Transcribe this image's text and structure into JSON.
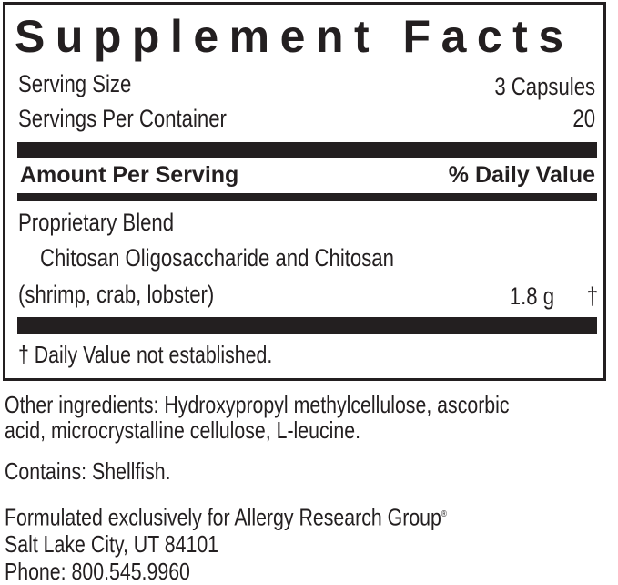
{
  "title": "Supplement Facts",
  "serving_size": {
    "label": "Serving Size",
    "value": "3 Capsules"
  },
  "servings_per_container": {
    "label": "Servings Per Container",
    "value": "20"
  },
  "header": {
    "amount_label": "Amount Per Serving",
    "dv_label": "% Daily Value"
  },
  "ingredients": [
    {
      "name": "Proprietary Blend",
      "detail": "Chitosan Oligosaccharide and Chitosan",
      "source": "(shrimp, crab, lobster)",
      "amount": "1.8 g",
      "dv": "†"
    }
  ],
  "footnote": "† Daily Value not established.",
  "other_ingredients": {
    "line1": "Other ingredients: Hydroxypropyl methylcellulose, ascorbic",
    "line2": "acid,  microcrystalline cellulose, L-leucine."
  },
  "contains": {
    "label": "Contains:",
    "value": "Shellfish."
  },
  "manufacturer": {
    "line1": "Formulated exclusively for Allergy Research Group",
    "registered": "®",
    "line2": "Salt Lake City, UT 84101",
    "line3": "Phone: 800.545.9960"
  }
}
